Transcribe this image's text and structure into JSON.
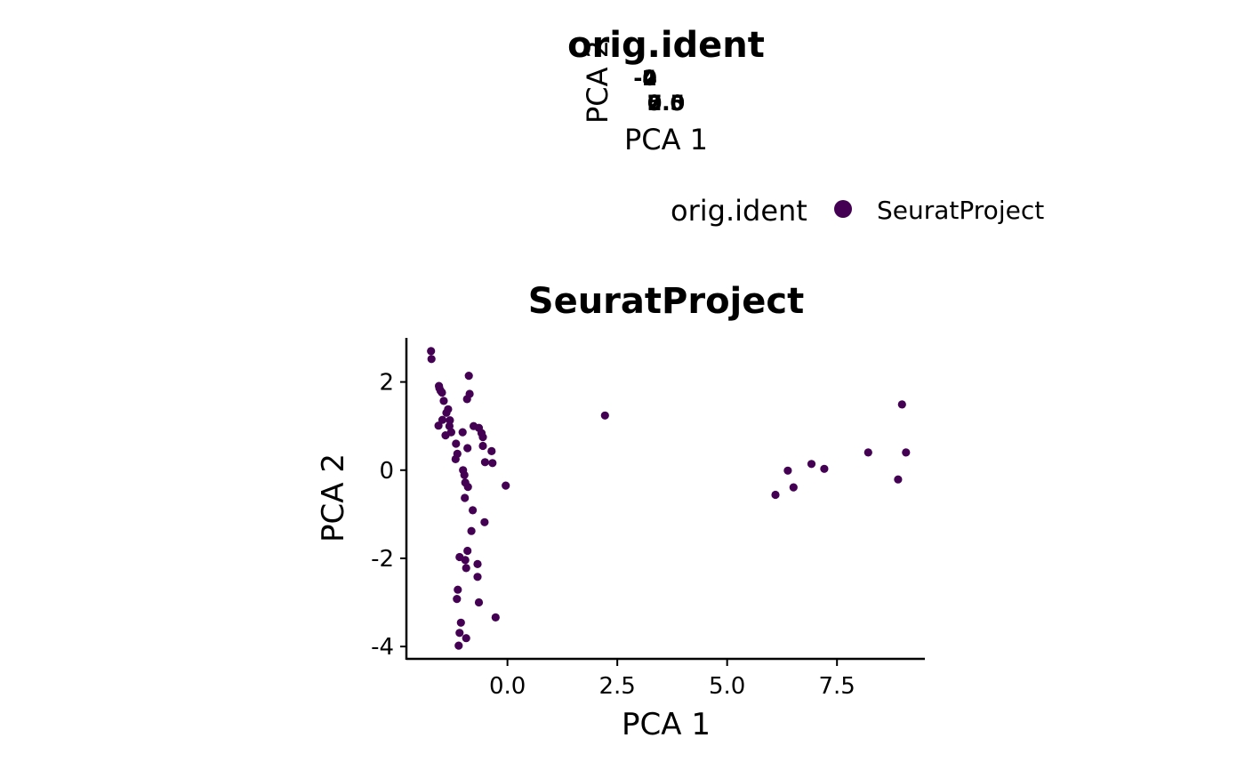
{
  "chart_data": [
    {
      "type": "scatter",
      "title": "orig.ident",
      "xlabel": "PCA 1",
      "ylabel": "PCA 2",
      "xticks": [
        "0.0",
        "2.5",
        "5.0",
        "7.5"
      ],
      "yticks": [
        "-4",
        "-2",
        "0",
        "2"
      ],
      "note": "collapsed panel; tick labels overlap",
      "series": []
    },
    {
      "type": "scatter",
      "title": "SeuratProject",
      "xlabel": "PCA 1",
      "ylabel": "PCA 2",
      "xlim": [
        -2.3,
        9.5
      ],
      "ylim": [
        -4.3,
        3.0
      ],
      "xticks": [
        "0.0",
        "2.5",
        "5.0",
        "7.5"
      ],
      "yticks": [
        "-4",
        "-2",
        "0",
        "2"
      ],
      "grid": false,
      "series": [
        {
          "name": "SeuratProject",
          "color": "#440154",
          "points": [
            [
              -1.74,
              2.7
            ],
            [
              -1.73,
              2.52
            ],
            [
              -1.56,
              1.91
            ],
            [
              -1.52,
              1.8
            ],
            [
              -1.49,
              1.76
            ],
            [
              -1.45,
              1.57
            ],
            [
              -1.55,
              1.86
            ],
            [
              -1.39,
              1.3
            ],
            [
              -1.35,
              1.38
            ],
            [
              -1.31,
              1.13
            ],
            [
              -1.32,
              1.0
            ],
            [
              -1.48,
              1.14
            ],
            [
              -1.57,
              1.01
            ],
            [
              -1.41,
              0.79
            ],
            [
              -1.28,
              0.86
            ],
            [
              -1.17,
              0.6
            ],
            [
              -1.14,
              0.37
            ],
            [
              -1.18,
              0.25
            ],
            [
              -1.02,
              0.86
            ],
            [
              -0.91,
              0.5
            ],
            [
              -1.01,
              0.0
            ],
            [
              -0.98,
              -0.11
            ],
            [
              -0.96,
              -0.28
            ],
            [
              -0.9,
              -0.38
            ],
            [
              -0.97,
              -0.63
            ],
            [
              -0.79,
              -0.91
            ],
            [
              -0.82,
              -1.38
            ],
            [
              -0.88,
              2.14
            ],
            [
              -0.86,
              1.73
            ],
            [
              -0.92,
              1.61
            ],
            [
              -0.77,
              1.0
            ],
            [
              -0.65,
              0.96
            ],
            [
              -0.59,
              0.84
            ],
            [
              -0.56,
              0.75
            ],
            [
              -0.56,
              0.55
            ],
            [
              -0.51,
              0.18
            ],
            [
              -0.36,
              0.43
            ],
            [
              -0.34,
              0.16
            ],
            [
              -0.04,
              -0.35
            ],
            [
              -0.52,
              -1.18
            ],
            [
              -1.09,
              -1.97
            ],
            [
              -0.96,
              -2.04
            ],
            [
              -0.94,
              -2.22
            ],
            [
              -0.91,
              -1.83
            ],
            [
              -0.68,
              -2.13
            ],
            [
              -0.68,
              -2.42
            ],
            [
              -1.13,
              -2.71
            ],
            [
              -1.15,
              -2.92
            ],
            [
              -0.65,
              -3.0
            ],
            [
              -1.06,
              -3.46
            ],
            [
              -1.09,
              -3.69
            ],
            [
              -0.94,
              -3.81
            ],
            [
              -1.11,
              -3.98
            ],
            [
              -0.27,
              -3.34
            ],
            [
              2.22,
              1.24
            ],
            [
              6.1,
              -0.56
            ],
            [
              6.38,
              -0.01
            ],
            [
              6.51,
              -0.39
            ],
            [
              6.92,
              0.14
            ],
            [
              7.21,
              0.03
            ],
            [
              8.21,
              0.4
            ],
            [
              8.89,
              -0.21
            ],
            [
              8.98,
              1.49
            ],
            [
              9.07,
              0.4
            ]
          ]
        }
      ]
    }
  ],
  "legend": {
    "title": "orig.ident",
    "items": [
      {
        "label": "SeuratProject",
        "color": "#440154"
      }
    ]
  }
}
